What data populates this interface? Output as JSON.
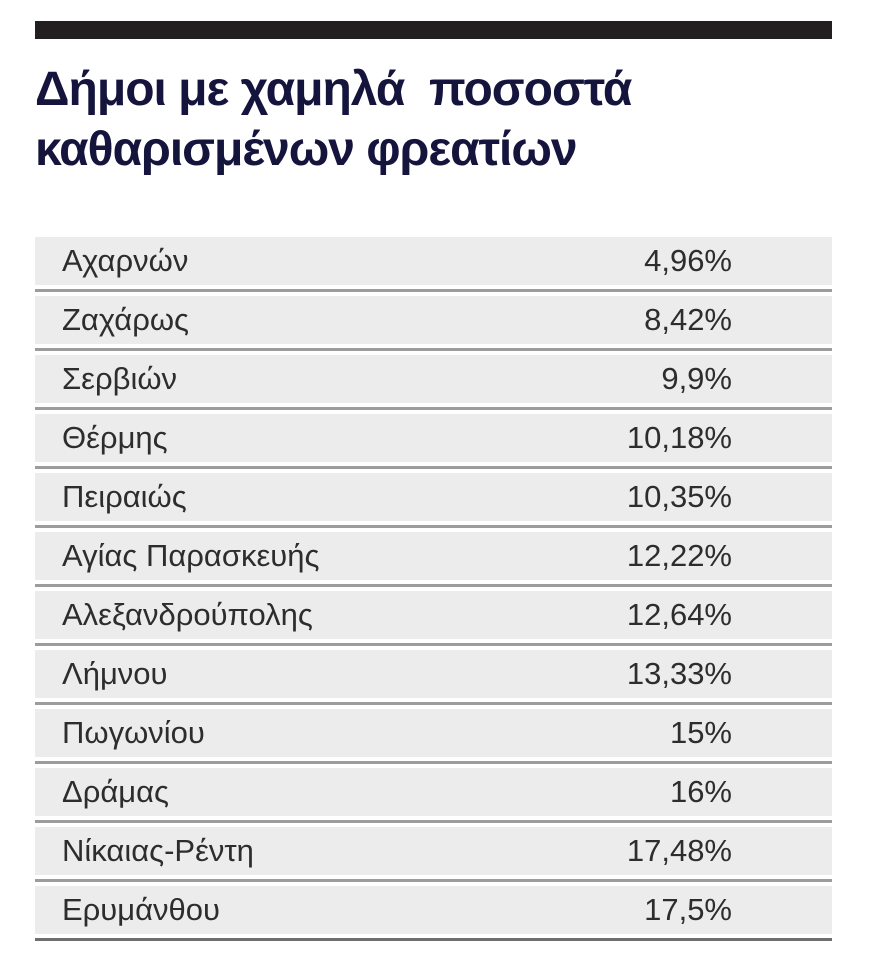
{
  "title": "Δήμοι με χαμηλά  ποσοστά\nκαθαρισμένων φρεατίων",
  "colors": {
    "top_bar": "#231f20",
    "title_text": "#14143c",
    "row_background": "#ececec",
    "row_text": "#2d2d2d",
    "separator_line": "#9c9c9c",
    "bottom_line": "#6e6e6e"
  },
  "chart_data": {
    "type": "table",
    "title": "Δήμοι με χαμηλά ποσοστά καθαρισμένων φρεατίων",
    "rows": [
      {
        "name": "Αχαρνών",
        "value": "4,96%",
        "percent": 4.96
      },
      {
        "name": "Ζαχάρως",
        "value": "8,42%",
        "percent": 8.42
      },
      {
        "name": "Σερβιών",
        "value": "9,9%",
        "percent": 9.9
      },
      {
        "name": "Θέρμης",
        "value": "10,18%",
        "percent": 10.18
      },
      {
        "name": "Πειραιώς",
        "value": "10,35%",
        "percent": 10.35
      },
      {
        "name": "Αγίας Παρασκευής",
        "value": "12,22%",
        "percent": 12.22
      },
      {
        "name": "Αλεξανδρούπολης",
        "value": "12,64%",
        "percent": 12.64
      },
      {
        "name": "Λήμνου",
        "value": "13,33%",
        "percent": 13.33
      },
      {
        "name": "Πωγωνίου",
        "value": "15%",
        "percent": 15
      },
      {
        "name": "Δράμας",
        "value": "16%",
        "percent": 16
      },
      {
        "name": "Νίκαιας-Ρέντη",
        "value": "17,48%",
        "percent": 17.48
      },
      {
        "name": "Ερυμάνθου",
        "value": "17,5%",
        "percent": 17.5
      }
    ]
  }
}
